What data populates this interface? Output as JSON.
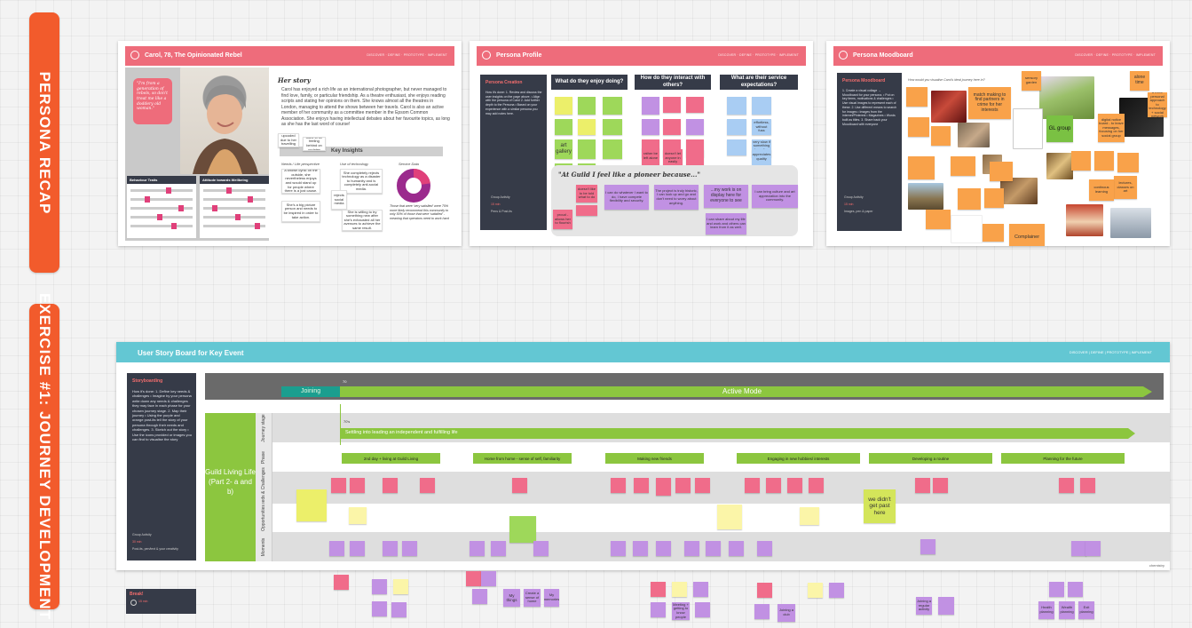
{
  "section_labels": {
    "recap": "PERSONA RECAP",
    "exercise": "EXERCISE #1: JOURNEY DEVELOPMENT"
  },
  "colors": {
    "accent_orange": "#f25b2c",
    "slide_header_pink": "#ee6c7b",
    "board_header_teal": "#63c7d3",
    "panel_dark": "#363b48",
    "phase_green": "#8cc63f",
    "joining_teal": "#1b9e8f"
  },
  "slide1": {
    "title": "Carol, 78, The Opinionated Rebel",
    "nav": "DISCOVER · DEFINE · PROTOTYPE · IMPLEMENT",
    "quote": "\"I'm from a generation of rebels, so don't treat me like a doddery old woman.\"",
    "story_heading": "Her story",
    "story": "Carol has enjoyed a rich life as an international photographer, but never managed to find love, family, or particular friendship. As a theatre enthusiast, she enjoys reading scripts and stating her opinions on them. She knows almost all the theatres in London, managing to attend the shows between her travels. Carol is also an active member of her community as a committee member in the Epsom Common Association. She enjoys having intellectual debates about her favourite topics, as long as she has the last word of course!",
    "key_insights": "Key Insights",
    "behaviour_traits": "Behaviour Traits",
    "attitude_wellbeing": "Attitude towards Wellbeing",
    "col_needs": "Needs / Life perspective",
    "col_tech": "Use of technology",
    "col_service": "Service Data",
    "notes": [
      "upcoded due to her travelling",
      "used to be feeling behind on updates",
      "A known cynic on the outside, she nevertheless enjoys and would stand up for people where there is a just cause.",
      "She completely rejects technology as a disaster to humanity and is completely anti-social media.",
      "rejects social media",
      "She's a big picture person and needs to be inspired in order to take action.",
      "She is willing to try something new after she's exhausted all her avenues to achieve the same result."
    ],
    "service_note": "Those that were 'very satisfied' were 75% more likely recommend this community to only 50% of those that were 'satisfied' - meaning that operators need to work hard"
  },
  "slide2": {
    "title": "Persona Profile",
    "nav": "DISCOVER · DEFINE · PROTOTYPE · IMPLEMENT",
    "panel_heading": "Persona Creation",
    "panel_body": "How it's done: 1. Review and discuss the user insights on the page above. • Align with the persona of Carol 2. Add further depth to the Persona • Based on your experience with a similar persona you may add notes here.",
    "panel_footer": [
      "Group Activity",
      "15 min",
      "Pens & Post-its"
    ],
    "q1": "What do they enjoy doing?",
    "q2": "How do they interact with others?",
    "q3": "What are their service expectations?",
    "quote_bubble": "\"At Guild I feel like a pioneer because...\"",
    "bubble_notes": [
      "I can do whatever I want to do, I have compete flexibility and security.",
      "The project is truly historic, I can look up and go and don't need to worry about anything.",
      "...my work is on display here for everyone to see",
      "I can bring culture and art appreciation into the community.",
      "I can share about my life and work and others can learn from it as well."
    ],
    "notes": [
      "art gallery",
      "rather be left alone",
      "doesn't let anyone in easily",
      "effortless, without fuss",
      "very slow if something doesn't go her way",
      "appreciates quality",
      "proud - allows her to flourish",
      "doesn't like to be told what to do"
    ]
  },
  "slide3": {
    "title": "Persona Moodboard",
    "nav": "DISCOVER · DEFINE · PROTOTYPE · IMPLEMENT",
    "panel_heading": "Persona Moodboard",
    "panel_body": "1. Create a visual collage → Moodboard for your persona. • Put on key items, motivations & challenges • Use visual images to represent each of these. 2. Use different means to search for images • Images from the internet/Pinterest • Magazines • Words built as titles. 3. Share back your Moodboard with everyone",
    "panel_footer": [
      "Group Activity",
      "15 min",
      "Images, pen & paper"
    ],
    "prompt": "How would you visualise Carol's ideal journey here in?",
    "notes": [
      "sensory garden",
      "alone time",
      "match making to find partners in crime for her interests",
      "GL group",
      "digital notice board - to leave messages, focusing on her social group",
      "lectures, classes on art",
      "continous learning",
      "Complainer",
      "a more personal approach to technology + social network"
    ]
  },
  "board": {
    "title": "User Story Board for Key Event",
    "nav": "DISCOVER  |  DEFINE  |  PROTOTYPE  |  IMPLEMENT",
    "panel_heading": "Storyboarding",
    "panel_body": "How it's done: 1. Define key needs & challenges • Imagine by your persona write down any needs & challenges they may face in each phase for your chosen journey stage. 2. Map their journey • Using the purple and orange post-its tell the story of your persona through their needs and challenges. 3. Sketch out the story • Use the icons provided or images you can find to visualise the story",
    "panel_footer": [
      "Group Activity",
      "30 min",
      "Post-its, pen/text & your creativity"
    ],
    "tick_left": "70",
    "tick_mid": "70's",
    "joining": "Joining",
    "active_mode": "Active Mode",
    "stage": "Settling into leading an independent and fulfilling life",
    "row_title": "Guild Living Life (Part 2- a and b)",
    "row_labels": [
      "Journey stage",
      "Phase",
      "Needs & Challenges",
      "Opportunities",
      "Moments"
    ],
    "phases": [
      "2nd day + living at Guild Living",
      "Home from home - sense of self, familiarity",
      "Making new friends",
      "Engaging in new hobbies/ interests",
      "Developing a routine",
      "Planning for the future"
    ],
    "sticky_big": "we didn't get past here",
    "brand": "chemistry"
  },
  "break": {
    "label": "Break!",
    "time": "15 min"
  },
  "below_notes": [
    "My things",
    "Create a sense of home",
    "My memories",
    "Meeting + getting to know people",
    "Joining a club",
    "Joining a regular activity",
    "Health planning",
    "Wealth planning",
    "Exit planning"
  ]
}
